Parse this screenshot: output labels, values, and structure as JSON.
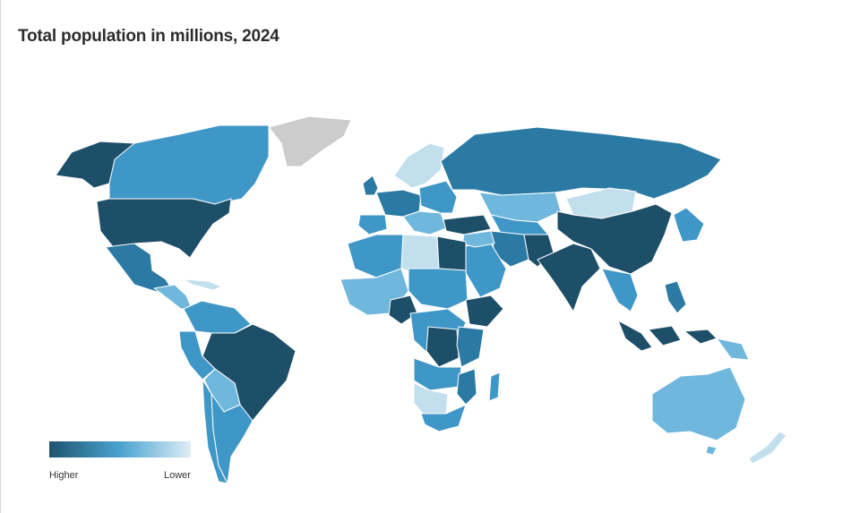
{
  "title": "Total population in millions, 2024",
  "legend": {
    "high_label": "Higher",
    "low_label": "Lower",
    "color_high": "#1f5470",
    "color_mid": "#4aa3d0",
    "color_low": "#deedf5"
  },
  "colors": {
    "darkest": "#1e4f69",
    "dark": "#2b7aa3",
    "mid": "#3f97c8",
    "light": "#6fb7dc",
    "lightest": "#c2dfee",
    "no_data": "#cccccc",
    "border": "#ffffff"
  }
}
